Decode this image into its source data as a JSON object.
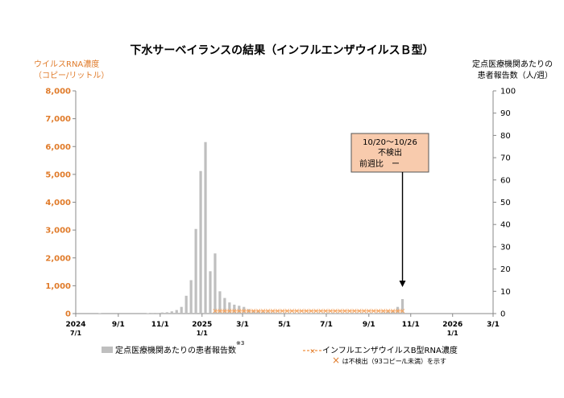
{
  "title": "下水サーベイランスの結果（インフルエンザウイルスＢ型）",
  "left_axis_label": [
    "ウイルスRNA濃度",
    "（コピー/リットル）"
  ],
  "right_axis_label": [
    "定点医療機関あたりの",
    "患者報告数（人/週）"
  ],
  "legend": {
    "bar_label": "定点医療機関あたりの患者報告数",
    "bar_superscript": "※3",
    "line_label": "インフルエンザウイルスB型RNA濃度",
    "note": "は不検出（93コピー/L未満）を示す",
    "note_marker": "×"
  },
  "annotation": {
    "lines": [
      "10/20～10/26",
      "不検出",
      "前週比　ー"
    ]
  },
  "colors": {
    "bar": "#BFBFBF",
    "line": "#F4A460",
    "left_axis_text": "#E07B2A",
    "annotation_fill": "#F8CBAD",
    "annotation_border": "#555555"
  },
  "chart_data": {
    "type": "bar",
    "title": "下水サーベイランスの結果（インフルエンザウイルスＢ型）",
    "x_tick_labels": [
      [
        "2024",
        "7/1"
      ],
      [
        "9/1",
        ""
      ],
      [
        "11/1",
        ""
      ],
      [
        "2025",
        "1/1"
      ],
      [
        "3/1",
        ""
      ],
      [
        "5/1",
        ""
      ],
      [
        "7/1",
        ""
      ],
      [
        "9/1",
        ""
      ],
      [
        "11/1",
        ""
      ],
      [
        "2026",
        "1/1"
      ],
      [
        "3/1",
        ""
      ]
    ],
    "x_tick_dates": [
      "2024-07-01",
      "2024-09-01",
      "2024-11-01",
      "2025-01-01",
      "2025-03-01",
      "2025-05-01",
      "2025-07-01",
      "2025-09-01",
      "2025-11-01",
      "2026-01-01",
      "2026-03-01"
    ],
    "y_left": {
      "label": "ウイルスRNA濃度（コピー/リットル）",
      "range": [
        0,
        8000
      ],
      "tick_labels": [
        "0",
        "1,000",
        "2,000",
        "3,000",
        "4,000",
        "5,000",
        "6,000",
        "7,000",
        "8,000"
      ]
    },
    "y_right": {
      "label": "定点医療機関あたりの患者報告数（人/週）",
      "range": [
        0,
        100
      ],
      "tick_labels": [
        "0",
        "10",
        "20",
        "30",
        "40",
        "50",
        "60",
        "70",
        "80",
        "90",
        "100"
      ]
    },
    "series": [
      {
        "name": "定点医療機関あたりの患者報告数",
        "type": "bar",
        "axis": "right",
        "points": [
          [
            "2024-08-05",
            0.2
          ],
          [
            "2024-10-14",
            0.2
          ],
          [
            "2024-10-21",
            0.3
          ],
          [
            "2024-10-28",
            0.3
          ],
          [
            "2024-11-04",
            0.5
          ],
          [
            "2024-11-11",
            0.6
          ],
          [
            "2024-11-18",
            1.0
          ],
          [
            "2024-11-25",
            1.6
          ],
          [
            "2024-12-02",
            3.0
          ],
          [
            "2024-12-09",
            8.0
          ],
          [
            "2024-12-16",
            15.0
          ],
          [
            "2024-12-23",
            38.0
          ],
          [
            "2024-12-30",
            64.0
          ],
          [
            "2025-01-06",
            77.0
          ],
          [
            "2025-01-13",
            19.0
          ],
          [
            "2025-01-20",
            27.0
          ],
          [
            "2025-01-27",
            10.0
          ],
          [
            "2025-02-03",
            7.0
          ],
          [
            "2025-02-10",
            5.0
          ],
          [
            "2025-02-17",
            4.0
          ],
          [
            "2025-02-24",
            3.5
          ],
          [
            "2025-03-03",
            3.0
          ],
          [
            "2025-03-10",
            2.0
          ],
          [
            "2025-03-17",
            1.5
          ],
          [
            "2025-03-24",
            1.2
          ],
          [
            "2025-03-31",
            0.8
          ],
          [
            "2025-04-07",
            0.6
          ],
          [
            "2025-04-14",
            0.5
          ],
          [
            "2025-04-21",
            0.4
          ],
          [
            "2025-04-28",
            0.3
          ],
          [
            "2025-05-05",
            0.3
          ],
          [
            "2025-05-12",
            0.2
          ],
          [
            "2025-05-19",
            0.2
          ],
          [
            "2025-05-26",
            0.2
          ],
          [
            "2025-06-02",
            0.1
          ],
          [
            "2025-06-09",
            0.1
          ],
          [
            "2025-06-16",
            0.1
          ],
          [
            "2025-06-23",
            0.1
          ],
          [
            "2025-06-30",
            0.1
          ],
          [
            "2025-07-07",
            0.1
          ],
          [
            "2025-07-14",
            0.1
          ],
          [
            "2025-07-21",
            0.1
          ],
          [
            "2025-07-28",
            0.1
          ],
          [
            "2025-08-04",
            0.1
          ],
          [
            "2025-08-11",
            0.1
          ],
          [
            "2025-08-18",
            0.1
          ],
          [
            "2025-08-25",
            0.1
          ],
          [
            "2025-09-01",
            0.2
          ],
          [
            "2025-09-08",
            0.2
          ],
          [
            "2025-09-15",
            0.3
          ],
          [
            "2025-09-22",
            0.5
          ],
          [
            "2025-09-29",
            0.8
          ],
          [
            "2025-10-06",
            1.2
          ],
          [
            "2025-10-13",
            3.0
          ],
          [
            "2025-10-20",
            6.5
          ]
        ]
      },
      {
        "name": "インフルエンザウイルスB型RNA濃度",
        "type": "line",
        "axis": "left",
        "non_detect_marker": "×",
        "non_detect_value": 93,
        "start_date": "2025-01-20",
        "end_date": "2025-10-20",
        "all_non_detect": true
      }
    ],
    "grid": false,
    "legend_position": "bottom"
  }
}
